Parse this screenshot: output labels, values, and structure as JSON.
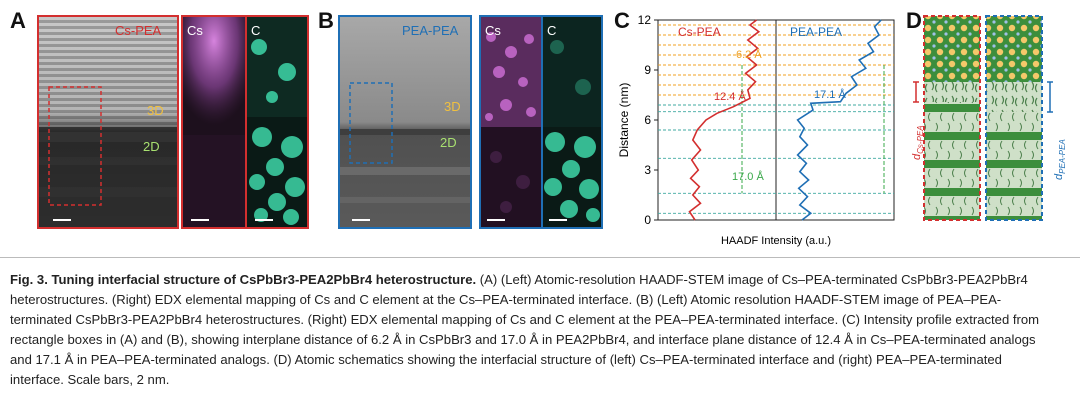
{
  "panels": {
    "A": {
      "letter": "A",
      "title": "Cs-PEA",
      "label_3d": "3D",
      "label_2d": "2D",
      "map_cs": "Cs",
      "map_c": "C",
      "color": "#d32f2f"
    },
    "B": {
      "letter": "B",
      "title": "PEA-PEA",
      "label_3d": "3D",
      "label_2d": "2D",
      "map_cs": "Cs",
      "map_c": "C",
      "color": "#1f6fb5"
    },
    "C": {
      "letter": "C",
      "ylabel": "Distance (nm)",
      "xlabel": "HAADF Intensity (a.u.)",
      "left_title": "Cs-PEA",
      "right_title": "PEA-PEA",
      "ann_62": "6.2 Å",
      "ann_124": "12.4 Å",
      "ann_171": "17.1 Å",
      "ann_170": "17.0 Å"
    },
    "D": {
      "letter": "D"
    }
  },
  "colors": {
    "red": "#d32f2f",
    "blue": "#1f6fb5",
    "orange": "#f0a020",
    "green": "#3aa84a",
    "teal": "#3fa8a0",
    "cs_map": "#d070d8",
    "c_map": "#3ed6a8"
  },
  "chart_data": {
    "type": "line",
    "ylabel": "Distance (nm)",
    "xlabel": "HAADF Intensity (a.u.)",
    "ylim": [
      0,
      12
    ],
    "yticks": [
      0,
      3,
      6,
      9,
      12
    ],
    "series": [
      {
        "name": "Cs-PEA",
        "points": [
          [
            0.3,
            0.0
          ],
          [
            0.25,
            0.5
          ],
          [
            0.35,
            1.0
          ],
          [
            0.28,
            1.5
          ],
          [
            0.34,
            2.0
          ],
          [
            0.26,
            2.5
          ],
          [
            0.33,
            3.0
          ],
          [
            0.27,
            3.6
          ],
          [
            0.35,
            4.2
          ],
          [
            0.28,
            4.8
          ],
          [
            0.32,
            5.4
          ],
          [
            0.4,
            6.0
          ],
          [
            0.5,
            6.4
          ],
          [
            0.65,
            6.8
          ],
          [
            0.8,
            7.3
          ],
          [
            0.78,
            7.8
          ],
          [
            0.85,
            8.3
          ],
          [
            0.76,
            8.8
          ],
          [
            0.86,
            9.3
          ],
          [
            0.77,
            9.8
          ],
          [
            0.87,
            10.3
          ],
          [
            0.78,
            10.8
          ],
          [
            0.88,
            11.3
          ],
          [
            0.8,
            11.7
          ],
          [
            0.86,
            12.0
          ]
        ]
      },
      {
        "name": "PEA-PEA",
        "points": [
          [
            0.2,
            0.0
          ],
          [
            0.28,
            0.4
          ],
          [
            0.18,
            0.9
          ],
          [
            0.25,
            1.4
          ],
          [
            0.17,
            1.9
          ],
          [
            0.26,
            2.4
          ],
          [
            0.18,
            2.9
          ],
          [
            0.24,
            3.4
          ],
          [
            0.16,
            3.9
          ],
          [
            0.25,
            4.5
          ],
          [
            0.18,
            5.0
          ],
          [
            0.22,
            5.5
          ],
          [
            0.16,
            6.0
          ],
          [
            0.3,
            6.6
          ],
          [
            0.28,
            7.0
          ],
          [
            0.55,
            7.1
          ],
          [
            0.6,
            7.6
          ],
          [
            0.7,
            8.1
          ],
          [
            0.65,
            8.6
          ],
          [
            0.78,
            9.1
          ],
          [
            0.72,
            9.6
          ],
          [
            0.85,
            10.1
          ],
          [
            0.8,
            10.6
          ],
          [
            0.9,
            11.1
          ],
          [
            0.86,
            11.6
          ],
          [
            0.92,
            12.0
          ]
        ]
      }
    ],
    "annotations": [
      "6.2 Å",
      "12.4 Å",
      "17.1 Å",
      "17.0 Å"
    ]
  },
  "caption": {
    "fig": "Fig. 3.",
    "title": "Tuning interfacial structure of CsPbBr3-PEA2PbBr4 heterostructure.",
    "body": [
      "(A) (Left) Atomic-resolution HAADF-STEM image of Cs–PEA-terminated CsPbBr3-PEA2PbBr4",
      "heterostructures. (Right) EDX elemental mapping of Cs and C element at the Cs–PEA-terminated interface. (B) (Left) Atomic resolution HAADF-STEM image of PEA–PEA-",
      "terminated CsPbBr3-PEA2PbBr4 heterostructures. (Right) EDX elemental mapping of Cs and C element at the PEA–PEA-terminated interface. (C) Intensity profile extracted from",
      "rectangle boxes in (A) and (B), showing interplane distance of 6.2 Å in CsPbBr3 and 17.0 Å in PEA2PbBr4, and interface plane distance of 12.4 Å in Cs–PEA-terminated analogs",
      "and 17.1 Å in PEA–PEA-terminated analogs. (D) Atomic schematics showing the interfacial structure of (left) Cs–PEA-terminated interface and (right) PEA–PEA-terminated",
      "interface. Scale bars, 2 nm."
    ]
  }
}
